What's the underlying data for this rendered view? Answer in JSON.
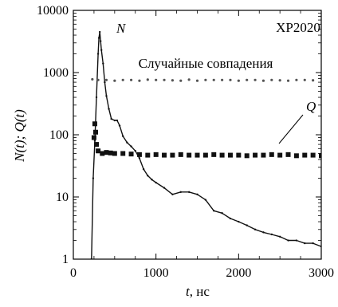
{
  "chart_data": {
    "type": "line",
    "title": "",
    "panel_label": "XP2020",
    "annotation": "Случайные совпадения",
    "xlabel_var": "t",
    "xlabel_unit": ", нс",
    "ylabel": "N(t); Q(t)",
    "xlim": [
      0,
      3000
    ],
    "ylim": [
      1,
      10000
    ],
    "y_scale": "log",
    "grid": false,
    "x_ticks": [
      0,
      1000,
      2000,
      3000
    ],
    "x_tick_labels": [
      "0",
      "1000",
      "2000",
      "3000"
    ],
    "y_ticks": [
      1,
      10,
      100,
      1000,
      10000
    ],
    "y_tick_labels": [
      "1",
      "10",
      "100",
      "1000",
      "10000"
    ],
    "series": [
      {
        "name": "N",
        "style": "line",
        "color": "#111111",
        "x": [
          220,
          240,
          260,
          280,
          300,
          310,
          320,
          330,
          340,
          360,
          380,
          400,
          430,
          460,
          500,
          530,
          560,
          600,
          650,
          700,
          750,
          800,
          850,
          900,
          950,
          1000,
          1100,
          1200,
          1300,
          1400,
          1500,
          1600,
          1700,
          1800,
          1900,
          2000,
          2100,
          2200,
          2300,
          2400,
          2500,
          2600,
          2700,
          2800,
          2900,
          3000
        ],
        "y": [
          1,
          20,
          80,
          400,
          2000,
          3600,
          4500,
          3200,
          2300,
          1400,
          700,
          420,
          260,
          180,
          170,
          170,
          140,
          95,
          75,
          65,
          55,
          42,
          28,
          22,
          19,
          17,
          14,
          11,
          12,
          12,
          11,
          9,
          6,
          5.5,
          4.5,
          4,
          3.5,
          3,
          2.7,
          2.5,
          2.3,
          2,
          2,
          1.8,
          1.8,
          1.6
        ]
      },
      {
        "name": "Q",
        "style": "markers",
        "color": "#111111",
        "x": [
          250,
          260,
          270,
          280,
          300,
          350,
          400,
          450,
          500,
          600,
          700,
          800,
          900,
          1000,
          1100,
          1200,
          1300,
          1400,
          1500,
          1600,
          1700,
          1800,
          1900,
          2000,
          2100,
          2200,
          2300,
          2400,
          2500,
          2600,
          2700,
          2800,
          2900,
          3000
        ],
        "y": [
          90,
          150,
          110,
          70,
          55,
          50,
          52,
          51,
          50,
          50,
          49,
          48,
          47,
          48,
          47,
          47,
          48,
          47,
          47,
          47,
          48,
          47,
          47,
          47,
          46,
          47,
          47,
          48,
          47,
          48,
          46,
          47,
          47,
          46
        ]
      },
      {
        "name": "",
        "style": "sparse-markers",
        "color": "#555555",
        "x": [
          230,
          300,
          400,
          500,
          600,
          700,
          800,
          900,
          1000,
          1100,
          1200,
          1300,
          1400,
          1500,
          1600,
          1700,
          1800,
          1900,
          2000,
          2100,
          2200,
          2300,
          2400,
          2500,
          2600,
          2700,
          2800,
          2900
        ],
        "y": [
          780,
          760,
          760,
          740,
          760,
          760,
          740,
          770,
          760,
          760,
          750,
          740,
          770,
          740,
          760,
          760,
          760,
          760,
          740,
          760,
          760,
          740,
          760,
          750,
          740,
          760,
          760,
          750
        ]
      }
    ]
  }
}
